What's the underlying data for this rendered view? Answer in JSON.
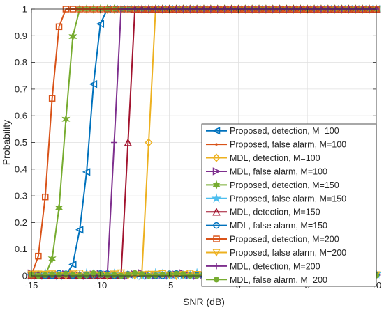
{
  "chart_data": {
    "type": "line",
    "xlabel": "SNR (dB)",
    "ylabel": "Probability",
    "xlim": [
      -15,
      10
    ],
    "ylim": [
      0,
      1
    ],
    "xticks": [
      -15,
      -10,
      -5,
      0,
      5,
      10
    ],
    "yticks": [
      0,
      0.1,
      0.2,
      0.3,
      0.4,
      0.5,
      0.6,
      0.7,
      0.8,
      0.9,
      1
    ],
    "xtick_labels": [
      "-15",
      "-10",
      "-5",
      "0",
      "5",
      "10"
    ],
    "ytick_labels": [
      "0",
      "0.1",
      "0.2",
      "0.3",
      "0.4",
      "0.5",
      "0.6",
      "0.7",
      "0.8",
      "0.9",
      "1"
    ],
    "grid": true,
    "legend_position": "bottom-right",
    "x": [
      -15,
      -14.5,
      -14,
      -13.5,
      -13,
      -12.5,
      -12,
      -11.5,
      -11,
      -10.5,
      -10,
      -9.5,
      -9,
      -8.5,
      -8,
      -7.5,
      -7,
      -6.5,
      -6,
      -5.5,
      -5,
      -4.5,
      -4,
      -3.5,
      -3,
      -2.5,
      -2,
      -1.5,
      -1,
      -0.5,
      0,
      0.5,
      1,
      1.5,
      2,
      2.5,
      3,
      3.5,
      4,
      4.5,
      5,
      5.5,
      6,
      6.5,
      7,
      7.5,
      8,
      8.5,
      9,
      9.5,
      10
    ],
    "series": [
      {
        "name": "Proposed, detection, M=100",
        "color": "#0072BD",
        "marker": "triangle-left",
        "curve": "detection",
        "params": [
          -12.5,
          -10.8,
          -9.6
        ]
      },
      {
        "name": "Proposed, false alarm, M=100",
        "color": "#D95319",
        "marker": "dot",
        "curve": "false_alarm"
      },
      {
        "name": "MDL, detection, M=100",
        "color": "#EDB120",
        "marker": "diamond",
        "curve": "detection",
        "params": [
          -7.0,
          -6.5,
          -6.0
        ]
      },
      {
        "name": "MDL, false alarm, M=100",
        "color": "#7E2F8E",
        "marker": "triangle-right",
        "curve": "false_alarm"
      },
      {
        "name": "Proposed, detection, M=150",
        "color": "#77AC30",
        "marker": "hexagram",
        "curve": "detection",
        "params": [
          -14.0,
          -12.6,
          -11.5
        ]
      },
      {
        "name": "Proposed, false alarm, M=150",
        "color": "#4DBEEE",
        "marker": "pentagram",
        "curve": "false_alarm"
      },
      {
        "name": "MDL, detection, M=150",
        "color": "#A2142F",
        "marker": "triangle-up",
        "curve": "detection",
        "params": [
          -8.5,
          -8.0,
          -7.5
        ]
      },
      {
        "name": "MDL, false alarm, M=150",
        "color": "#0072BD",
        "marker": "circle",
        "curve": "false_alarm"
      },
      {
        "name": "Proposed, detection, M=200",
        "color": "#D95319",
        "marker": "square",
        "curve": "detection",
        "params": [
          -15.0,
          -13.7,
          -12.6
        ]
      },
      {
        "name": "Proposed, false alarm, M=200",
        "color": "#EDB120",
        "marker": "triangle-down",
        "curve": "false_alarm"
      },
      {
        "name": "MDL, detection, M=200",
        "color": "#7E2F8E",
        "marker": "plus",
        "curve": "detection",
        "params": [
          -9.5,
          -9.0,
          -8.5
        ]
      },
      {
        "name": "MDL, false alarm, M=200",
        "color": "#77AC30",
        "marker": "filled-circle",
        "curve": "false_alarm"
      }
    ]
  }
}
